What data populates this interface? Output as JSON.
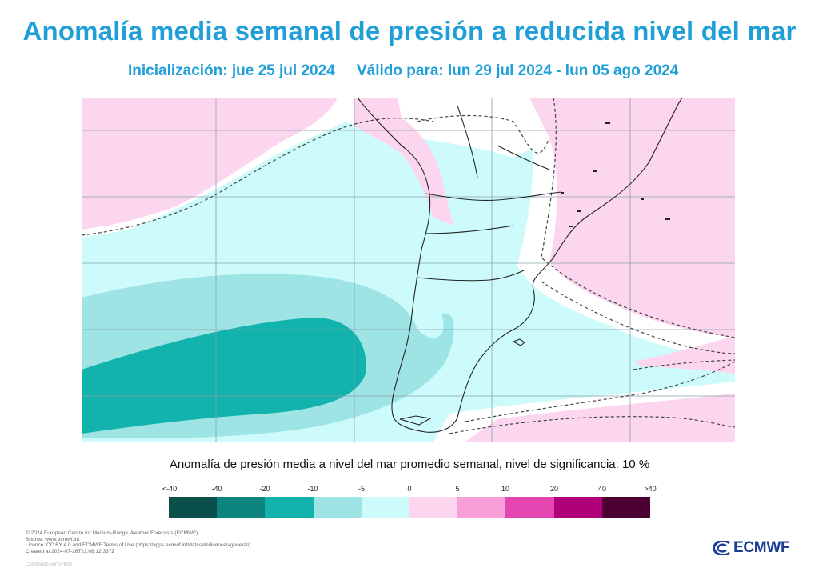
{
  "title": "Anomalía media semanal de presión a reducida nivel del mar",
  "subtitle": {
    "init": "Inicialización: jue 25 jul 2024",
    "valid": "Válido para: lun 29 jul 2024 - lun 05 ago 2024"
  },
  "legend": {
    "title": "Anomalía de presión media a nivel del mar promedio semanal, nivel de significancia: 10 %",
    "ticks": [
      "<-40",
      "-40",
      "-20",
      "-10",
      "-5",
      "0",
      "5",
      "10",
      "20",
      "40",
      ">40"
    ],
    "colors": [
      "#0b4f4b",
      "#0e8480",
      "#13b3ad",
      "#9fe4e4",
      "#cdfbfb",
      "#fcd6ee",
      "#f79fd6",
      "#e447b1",
      "#b0007a",
      "#4d0032"
    ]
  },
  "map": {
    "colors": {
      "neg_5_0": "#cdfbfb",
      "neg_10_5": "#9fe4e4",
      "neg_20_10": "#13b3ad",
      "pos_0_5": "#fcd6ee",
      "neutral": "#ffffff",
      "coast": "#222222",
      "grid": "#8aa0a8"
    }
  },
  "footer": {
    "lines": [
      "© 2024 European Centre for Medium-Range Weather Forecasts (ECMWF)",
      "Source: www.ecmwf.int",
      "Licence: CC BY 4.0 and ECMWF Terms of Use (https://apps.ecmwf.int/datasets/licences/general/)",
      "Created at 2024-07-26T21:08:12.337Z"
    ],
    "compiled": "Compilado por VHDG"
  },
  "logo": {
    "text": "ECMWF",
    "icon": "ecmwf-logo-icon"
  }
}
